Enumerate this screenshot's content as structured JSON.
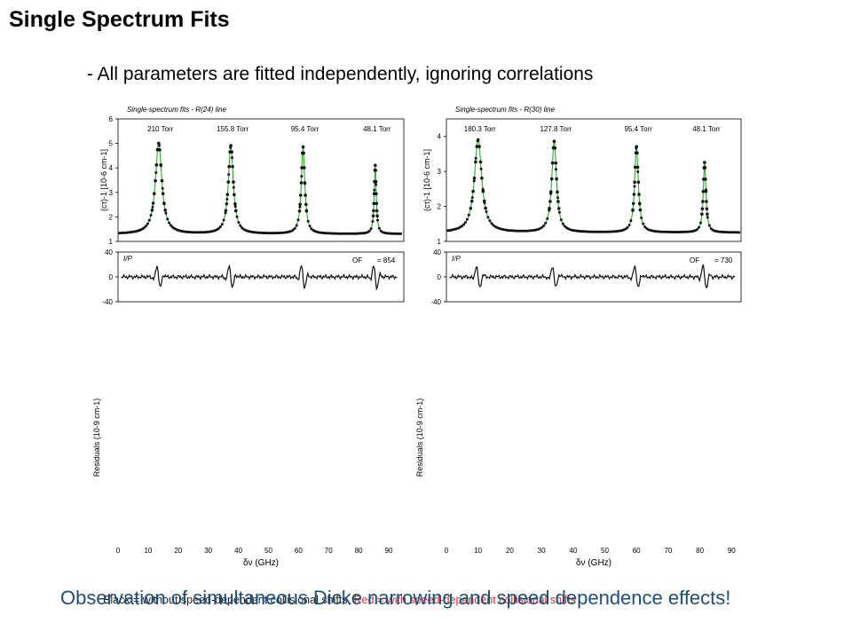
{
  "slide": {
    "title": "Single Spectrum Fits",
    "subtitle": "- All parameters are fitted independently, ignoring correlations",
    "conclusion": "Observation of simultaneous Dicke narrowing and speed dependence effects!",
    "legend_black": "Black = without speed-dependent collisional shifts,",
    "legend_red": "Red = with speed-dependent collisional shifts"
  },
  "colors": {
    "fit_line": "#2fa82f",
    "markers": "#111111",
    "conclusion_text": "#1f4e79",
    "legend_red": "#e03030"
  },
  "chart_data": [
    {
      "type": "line",
      "title": "Single-spectrum fits - R(24) line",
      "ylabel": "(cτ)-1 [10-6 cm-1]",
      "ylim": [
        1,
        6
      ],
      "yticks": [
        1,
        2,
        3,
        4,
        5,
        6
      ],
      "pressure_labels": [
        "210 Torr",
        "155.8 Torr",
        "95.4 Torr",
        "48.1 Torr"
      ],
      "series": [
        {
          "peaks": [
            {
              "center": 13.5,
              "height": 5.0,
              "width": 1.3
            },
            {
              "center": 37.5,
              "height": 4.9,
              "width": 1.0
            },
            {
              "center": 61.5,
              "height": 4.85,
              "width": 0.7
            },
            {
              "center": 85.5,
              "height": 4.1,
              "width": 0.4
            }
          ],
          "baseline": 1.3
        }
      ],
      "residuals": {
        "label": "I/P",
        "ylim": [
          -40,
          40
        ],
        "yticks": [
          -40,
          0,
          40
        ],
        "of_label": "OF",
        "of_value": "= 854",
        "spike_centers": [
          13.5,
          37.5,
          61.5,
          85.5
        ]
      },
      "bottom": {
        "ylabel": "Residuals (10-9 cm-1)",
        "xlabel": "δν (GHz)",
        "xticks": [
          0,
          10,
          20,
          30,
          40,
          50,
          60,
          70,
          80,
          90
        ]
      }
    },
    {
      "type": "line",
      "title": "Single-spectrum fits - R(30) line",
      "ylabel": "(cτ)-1 [10-6 cm-1]",
      "ylim": [
        1,
        4.5
      ],
      "yticks": [
        1,
        2,
        3,
        4
      ],
      "pressure_labels": [
        "180.3 Torr",
        "127.8 Torr",
        "95.4 Torr",
        "48.1 Torr"
      ],
      "series": [
        {
          "peaks": [
            {
              "center": 10.0,
              "height": 3.9,
              "width": 1.4
            },
            {
              "center": 34.0,
              "height": 3.85,
              "width": 0.9
            },
            {
              "center": 60.0,
              "height": 3.7,
              "width": 0.7
            },
            {
              "center": 81.5,
              "height": 3.25,
              "width": 0.5
            }
          ],
          "baseline": 1.25
        }
      ],
      "residuals": {
        "label": "I/P",
        "ylim": [
          -40,
          40
        ],
        "yticks": [
          -40,
          0,
          40
        ],
        "of_label": "OF",
        "of_value": "= 730",
        "spike_centers": [
          10.0,
          34.0,
          60.0,
          81.5
        ]
      },
      "bottom": {
        "ylabel": "Residuals (10-9 cm-1)",
        "xlabel": "δν (GHz)",
        "xticks": [
          0,
          10,
          20,
          30,
          40,
          50,
          60,
          70,
          80,
          90
        ]
      }
    }
  ]
}
